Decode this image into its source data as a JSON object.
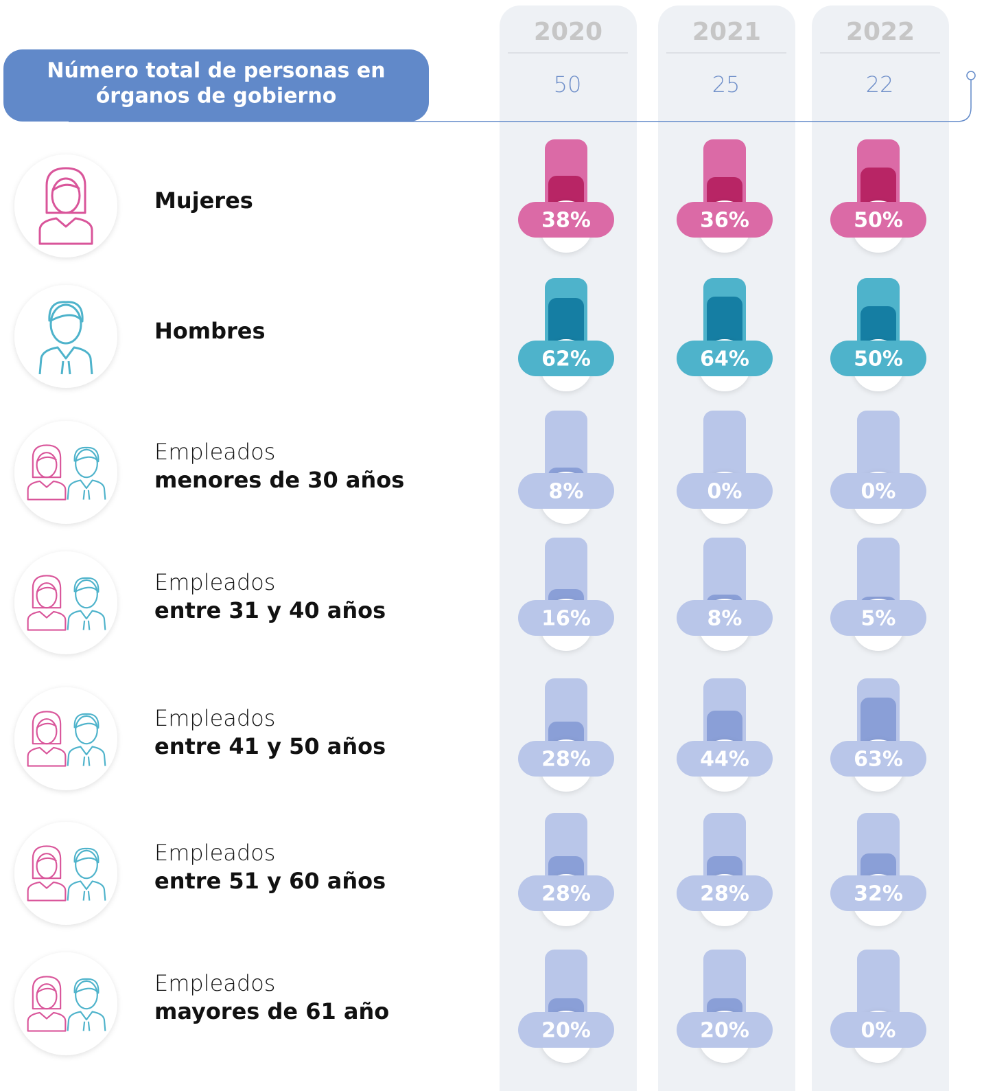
{
  "header": {
    "title_lines": [
      "Número total de personas en",
      "órganos de gobierno"
    ]
  },
  "years": [
    "2020",
    "2021",
    "2022"
  ],
  "totals": [
    50,
    25,
    22
  ],
  "rows": [
    {
      "label_bold": "Mujeres",
      "values": [
        38,
        36,
        50
      ],
      "value_labels": [
        "38%",
        "36%",
        "50%"
      ]
    },
    {
      "label_bold": "Hombres",
      "values": [
        62,
        64,
        50
      ],
      "value_labels": [
        "62%",
        "64%",
        "50%"
      ]
    },
    {
      "label": "Empleados",
      "label_bold": "menores de 30 años",
      "values": [
        8,
        0,
        0
      ],
      "value_labels": [
        "8%",
        "0%",
        "0%"
      ]
    },
    {
      "label": "Empleados",
      "label_bold": "entre 31 y 40 años",
      "values": [
        16,
        8,
        5
      ],
      "value_labels": [
        "16%",
        "8%",
        "5%"
      ]
    },
    {
      "label": "Empleados",
      "label_bold": "entre 41 y 50 años",
      "values": [
        28,
        44,
        63
      ],
      "value_labels": [
        "28%",
        "44%",
        "63%"
      ]
    },
    {
      "label": "Empleados",
      "label_bold": "entre 51 y 60 años",
      "values": [
        28,
        28,
        32
      ],
      "value_labels": [
        "28%",
        "28%",
        "32%"
      ]
    },
    {
      "label": "Empleados",
      "label_bold": "mayores de 61 año",
      "values": [
        20,
        20,
        0
      ],
      "value_labels": [
        "20%",
        "20%",
        "0%"
      ]
    }
  ]
}
